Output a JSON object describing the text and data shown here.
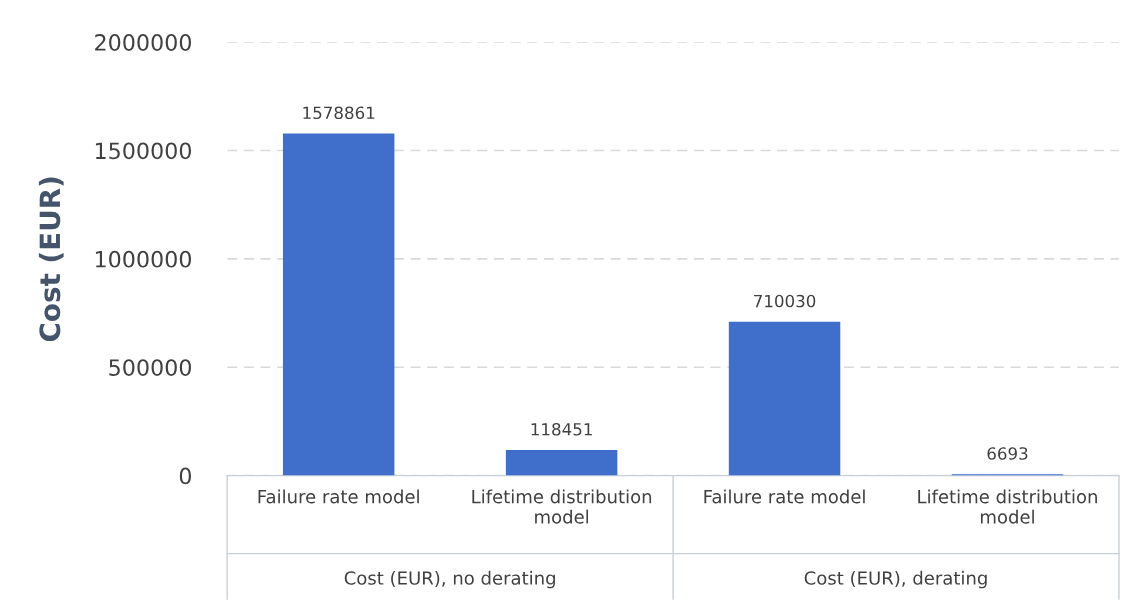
{
  "chart_data": {
    "type": "bar",
    "ylabel": "Cost (EUR)",
    "categories": [
      "Failure rate model",
      "Lifetime distribution\nmodel",
      "Failure rate model",
      "Lifetime distribution\nmodel"
    ],
    "values": [
      1578861,
      118451,
      710030,
      6693
    ],
    "color": "#3f6fcb",
    "ylim": [
      0,
      2000000
    ],
    "yticks": [
      0,
      500000,
      1000000,
      1500000,
      2000000
    ],
    "grid": "y",
    "data_labels": true,
    "annotations": [
      "Cost (EUR), no derating",
      "Cost (EUR), derating"
    ]
  }
}
